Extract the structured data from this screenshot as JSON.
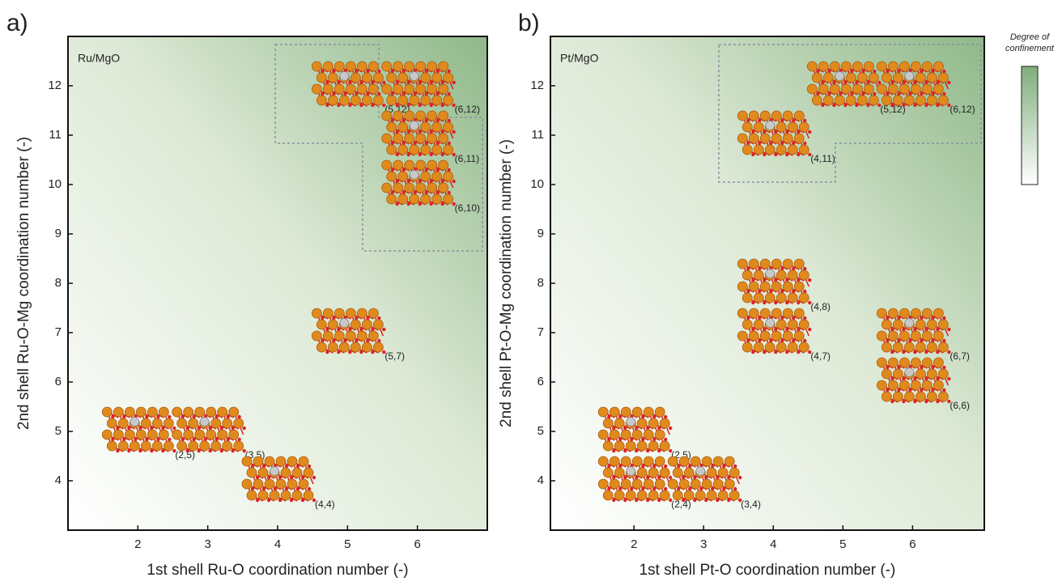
{
  "chart_data": [
    {
      "type": "scatter",
      "panel": "a)",
      "title": "Ru/MgO",
      "x_label": "1st shell Ru-O coordination number (-)",
      "y_label": "2nd shell Ru-O-Mg coordination number (-)",
      "x": [
        2,
        3,
        4,
        5,
        5,
        6,
        6,
        6
      ],
      "y": [
        5,
        5,
        4,
        7,
        12,
        12,
        11,
        10
      ],
      "labels": [
        "(2,5)",
        "(3,5)",
        "(4,4)",
        "(5,7)",
        "(5,12)",
        "(6,12)",
        "(6,11)",
        "(6,10)"
      ],
      "xlim": [
        1,
        7
      ],
      "ylim": [
        3,
        13
      ],
      "xticks": [
        2,
        3,
        4,
        5,
        6
      ],
      "yticks": [
        4,
        5,
        6,
        7,
        8,
        9,
        10,
        11,
        12
      ]
    },
    {
      "type": "scatter",
      "panel": "b)",
      "title": "Pt/MgO",
      "x_label": "1st shell Pt-O coordination number (-)",
      "y_label": "2nd shell Pt-O-Mg coordination number (-)",
      "x": [
        2,
        2,
        3,
        4,
        4,
        6,
        6,
        4,
        5,
        6
      ],
      "y": [
        5,
        4,
        4,
        8,
        7,
        7,
        6,
        11,
        12,
        12
      ],
      "labels": [
        "(2,5)",
        "(2,4)",
        "(3,4)",
        "(4,8)",
        "(4,7)",
        "(6,7)",
        "(6,6)",
        "(4,11)",
        "(5,12)",
        "(6,12)"
      ],
      "xlim": [
        0.8,
        7.03
      ],
      "ylim": [
        3,
        13
      ],
      "xticks": [
        2,
        3,
        4,
        5,
        6
      ],
      "yticks": [
        4,
        5,
        6,
        7,
        8,
        9,
        10,
        11,
        12
      ]
    }
  ],
  "colorbar": {
    "label_lines": [
      "Degree of",
      "confinement"
    ]
  }
}
